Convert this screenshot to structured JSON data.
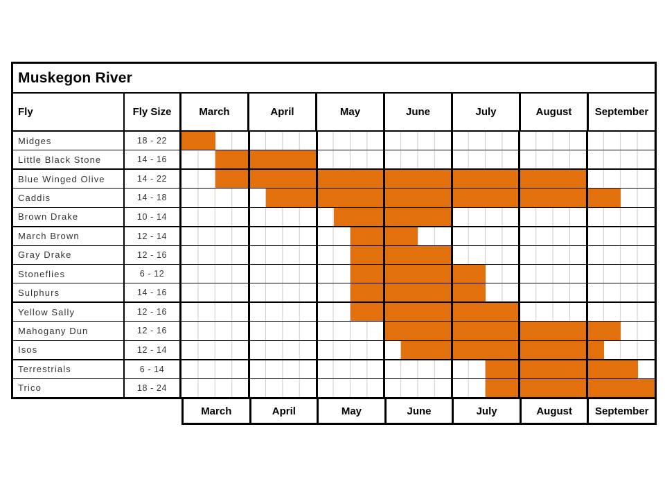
{
  "title": "Muskegon River",
  "columns": {
    "fly": "Fly",
    "fly_size": "Fly Size"
  },
  "colors": {
    "bar": "#E2710D",
    "border": "#000000",
    "subgrid": "#CBCBCB",
    "text": "#333333"
  },
  "chart_data": {
    "type": "gantt",
    "title": "Muskegon River",
    "months": [
      "March",
      "April",
      "May",
      "June",
      "July",
      "August",
      "September"
    ],
    "units_per_month": 4,
    "unit": "quarter-month (0 = start of March, 28 = end of September)",
    "rows": [
      {
        "fly": "Midges",
        "size": "18 - 22",
        "start": 0,
        "end": 2
      },
      {
        "fly": "Little Black Stone",
        "size": "14 - 16",
        "start": 2,
        "end": 8
      },
      {
        "fly": "Blue Winged Olive",
        "size": "14 - 22",
        "start": 2,
        "end": 24
      },
      {
        "fly": "Caddis",
        "size": "14 - 18",
        "start": 5,
        "end": 26
      },
      {
        "fly": "Brown Drake",
        "size": "10 - 14",
        "start": 9,
        "end": 16
      },
      {
        "fly": "March Brown",
        "size": "12 - 14",
        "start": 10,
        "end": 14
      },
      {
        "fly": "Gray Drake",
        "size": "12 - 16",
        "start": 10,
        "end": 16
      },
      {
        "fly": "Stoneflies",
        "size": "6 - 12",
        "start": 10,
        "end": 18
      },
      {
        "fly": "Sulphurs",
        "size": "14 - 16",
        "start": 10,
        "end": 18
      },
      {
        "fly": "Yellow Sally",
        "size": "12 - 16",
        "start": 10,
        "end": 20
      },
      {
        "fly": "Mahogany Dun",
        "size": "12 - 16",
        "start": 12,
        "end": 26
      },
      {
        "fly": "Isos",
        "size": "12 - 14",
        "start": 13,
        "end": 25
      },
      {
        "fly": "Terrestrials",
        "size": "6 - 14",
        "start": 18,
        "end": 27
      },
      {
        "fly": "Trico",
        "size": "18 - 24",
        "start": 18,
        "end": 28
      }
    ],
    "thick_separator_after_rows": [
      2,
      5,
      9,
      12
    ],
    "legend": "none",
    "grid": "gray quarter-month sublines, black month separators"
  }
}
